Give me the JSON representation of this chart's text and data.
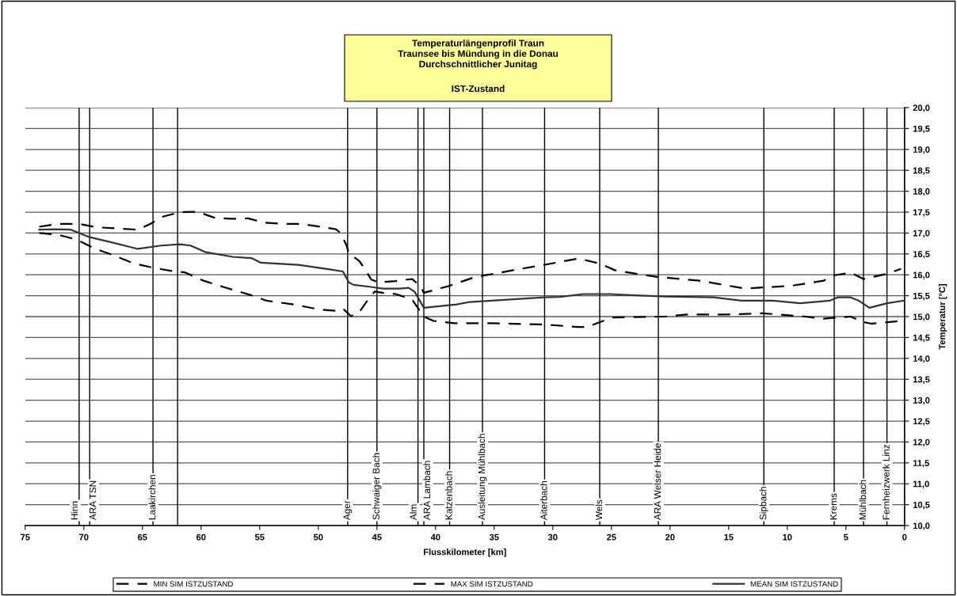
{
  "chart_data": {
    "type": "line",
    "title": "Temperaturlängenprofil Traun\nTraunsee bis Mündung in die Donau\nDurchschnittlicher Junitag",
    "subtitle": "IST-Zustand",
    "xlabel": "Flusskilometer [km]",
    "ylabel": "Temperatur [°C]",
    "xlim": [
      75,
      0
    ],
    "xticks": [
      75,
      70,
      65,
      60,
      55,
      50,
      45,
      40,
      35,
      30,
      25,
      20,
      15,
      10,
      5,
      0
    ],
    "ylim": [
      10,
      20
    ],
    "yticks": [
      {
        "value": 10,
        "label": "10,0"
      },
      {
        "value": 10.5,
        "label": "10,5"
      },
      {
        "value": 11,
        "label": "11,0"
      },
      {
        "value": 11.5,
        "label": "11,5"
      },
      {
        "value": 12,
        "label": "12,0"
      },
      {
        "value": 12.5,
        "label": "12,5"
      },
      {
        "value": 13,
        "label": "13,0"
      },
      {
        "value": 13.5,
        "label": "13,5"
      },
      {
        "value": 14,
        "label": "14,0"
      },
      {
        "value": 14.5,
        "label": "14,5"
      },
      {
        "value": 15,
        "label": "15,0"
      },
      {
        "value": 15.5,
        "label": "15,5"
      },
      {
        "value": 16,
        "label": "16,0"
      },
      {
        "value": 16.5,
        "label": "16,5"
      },
      {
        "value": 17,
        "label": "17,0"
      },
      {
        "value": 17.5,
        "label": "17,5"
      },
      {
        "value": 18,
        "label": "18,0"
      },
      {
        "value": 18.5,
        "label": "18,5"
      },
      {
        "value": 19,
        "label": "19,0"
      },
      {
        "value": 19.5,
        "label": "19,5"
      },
      {
        "value": 20,
        "label": "20,0"
      }
    ],
    "grid": "y",
    "legend": "bottom",
    "series": [
      {
        "name": "MIN SIM ISTZUSTAND",
        "color": "#000000",
        "line_style": "dashed",
        "x": [
          73.8,
          72.2,
          70.6,
          69.0,
          67.7,
          65.7,
          64.1,
          62.5,
          61.4,
          59.8,
          58.0,
          55.7,
          54.4,
          52.1,
          49.9,
          48.5,
          47.9,
          47.2,
          46.5,
          45.9,
          45.2,
          44.5,
          43.4,
          42.0,
          41.0,
          40.2,
          38.4,
          35.3,
          30.7,
          27.8,
          27.1,
          24.9,
          20.4,
          18.6,
          15.2,
          12.1,
          8.5,
          6.9,
          4.6,
          3.5,
          2.8,
          0.1
        ],
        "values": [
          17.0,
          16.96,
          16.84,
          16.62,
          16.49,
          16.27,
          16.17,
          16.09,
          16.06,
          15.86,
          15.7,
          15.51,
          15.38,
          15.29,
          15.17,
          15.14,
          15.19,
          15.01,
          15.11,
          15.35,
          15.6,
          15.57,
          15.54,
          15.41,
          15.0,
          14.9,
          14.84,
          14.84,
          14.81,
          14.75,
          14.75,
          14.98,
          15.0,
          15.05,
          15.05,
          15.08,
          15.0,
          14.95,
          15.0,
          14.87,
          14.83,
          14.9
        ]
      },
      {
        "name": "MAX SIM ISTZUSTAND",
        "color": "#000000",
        "line_style": "dashed",
        "x": [
          73.8,
          72.2,
          70.4,
          69.0,
          65.4,
          64.3,
          63.4,
          61.8,
          60.3,
          58.9,
          57.5,
          56.0,
          54.6,
          53.0,
          51.5,
          50.1,
          48.5,
          48.1,
          47.6,
          47.4,
          46.5,
          45.9,
          45.5,
          44.9,
          43.4,
          42.0,
          41.3,
          41.0,
          38.9,
          36.6,
          35.3,
          33.0,
          30.7,
          27.8,
          26.0,
          24.7,
          23.0,
          21.1,
          17.5,
          13.6,
          9.6,
          6.9,
          6.2,
          4.6,
          3.5,
          1.7,
          0.3
        ],
        "values": [
          17.15,
          17.22,
          17.22,
          17.14,
          17.08,
          17.22,
          17.38,
          17.5,
          17.51,
          17.37,
          17.34,
          17.35,
          17.25,
          17.22,
          17.22,
          17.16,
          17.09,
          17.0,
          16.71,
          16.52,
          16.33,
          16.08,
          15.89,
          15.82,
          15.85,
          15.9,
          15.73,
          15.57,
          15.73,
          15.95,
          16.01,
          16.13,
          16.24,
          16.39,
          16.27,
          16.11,
          16.03,
          15.95,
          15.86,
          15.67,
          15.74,
          15.86,
          15.98,
          16.05,
          15.9,
          16.01,
          16.14
        ]
      },
      {
        "name": "MEAN SIM ISTZUSTAND",
        "color": "#333333",
        "line_style": "solid",
        "x": [
          73.8,
          72.4,
          71.1,
          69.5,
          67.5,
          65.4,
          63.4,
          61.8,
          60.9,
          59.6,
          57.3,
          55.7,
          54.9,
          51.7,
          49.0,
          47.9,
          47.4,
          47.0,
          45.5,
          44.5,
          43.1,
          42.3,
          41.8,
          41.0,
          38.2,
          37.1,
          30.7,
          29.4,
          27.4,
          25.1,
          23.0,
          20.4,
          16.3,
          13.9,
          11.2,
          8.9,
          6.4,
          5.7,
          4.6,
          3.9,
          3.0,
          1.5,
          0.1
        ],
        "values": [
          17.08,
          17.09,
          17.08,
          16.9,
          16.77,
          16.62,
          16.7,
          16.73,
          16.7,
          16.54,
          16.43,
          16.4,
          16.29,
          16.24,
          16.13,
          16.08,
          15.82,
          15.76,
          15.71,
          15.67,
          15.67,
          15.69,
          15.6,
          15.21,
          15.29,
          15.35,
          15.46,
          15.47,
          15.54,
          15.54,
          15.51,
          15.48,
          15.46,
          15.38,
          15.38,
          15.32,
          15.38,
          15.46,
          15.46,
          15.38,
          15.21,
          15.32,
          15.38
        ]
      }
    ],
    "ref_lines": [
      {
        "axis": "x",
        "value": 70.4,
        "label": "Hinn"
      },
      {
        "axis": "x",
        "value": 69.5,
        "label": "ARA TSN"
      },
      {
        "axis": "x",
        "value": 64.1,
        "label": "Laakirchen"
      },
      {
        "axis": "x",
        "value": 62.0,
        "label": null
      },
      {
        "axis": "x",
        "value": 47.5,
        "label": "Ager"
      },
      {
        "axis": "x",
        "value": 45.0,
        "label": "Schwaiger Bach"
      },
      {
        "axis": "x",
        "value": 41.5,
        "label": "Alm"
      },
      {
        "axis": "x",
        "value": 41.0,
        "label": "ARA Lambach"
      },
      {
        "axis": "x",
        "value": 38.8,
        "label": "Katzenbach"
      },
      {
        "axis": "x",
        "value": 36.0,
        "label": "Ausleitung Mühlbach"
      },
      {
        "axis": "x",
        "value": 30.7,
        "label": "Aiterbach"
      },
      {
        "axis": "x",
        "value": 26.0,
        "label": "Wels"
      },
      {
        "axis": "x",
        "value": 21.0,
        "label": "ARA Welser Heide"
      },
      {
        "axis": "x",
        "value": 12.0,
        "label": "Sipbach"
      },
      {
        "axis": "x",
        "value": 6.0,
        "label": "Krems"
      },
      {
        "axis": "x",
        "value": 3.5,
        "label": "Mühlbach"
      },
      {
        "axis": "x",
        "value": 1.5,
        "label": "Fernheizwerk Linz"
      }
    ]
  }
}
